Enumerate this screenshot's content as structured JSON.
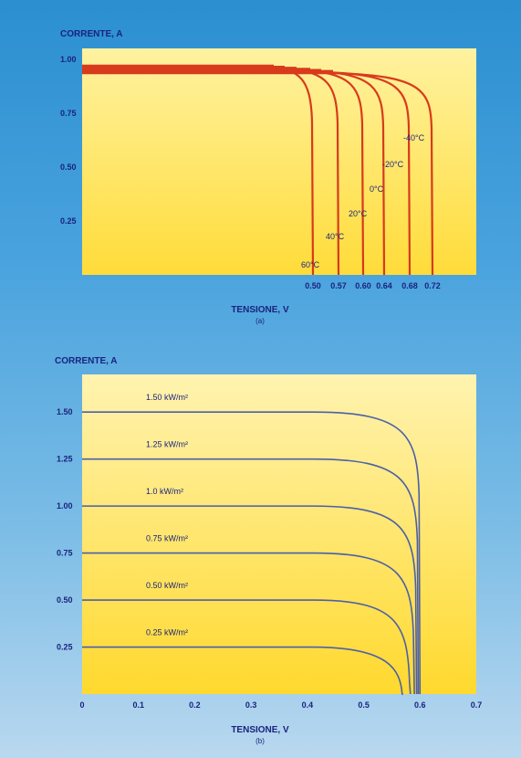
{
  "colors": {
    "background": "#3a98d8",
    "panel_yellow": "#ffe24a",
    "panel_top_yellow": "#fff4a8",
    "temp_curve": "#d83a1c",
    "irr_curve": "#4b5fa8",
    "text": "#1a237e"
  },
  "chart_data": [
    {
      "type": "line",
      "title": "",
      "ylabel": "CORRENTE, A",
      "xlabel": "TENSIONE, V",
      "caption": "(a)",
      "ylim": [
        0,
        1.05
      ],
      "y_ticks": [
        "0.25",
        "0.50",
        "0.75",
        "1.00"
      ],
      "x_ticks": [
        "0.50",
        "0.57",
        "0.60",
        "0.64",
        "0.68",
        "0.72"
      ],
      "series": [
        {
          "name": "60°C",
          "isc": 0.96,
          "voc": 0.5
        },
        {
          "name": "40°C",
          "isc": 0.955,
          "voc": 0.57
        },
        {
          "name": "20°C",
          "isc": 0.95,
          "voc": 0.6
        },
        {
          "name": "0°C",
          "isc": 0.945,
          "voc": 0.64
        },
        {
          "name": "-20°C",
          "isc": 0.94,
          "voc": 0.68
        },
        {
          "name": "-40°C",
          "isc": 0.935,
          "voc": 0.72
        }
      ]
    },
    {
      "type": "line",
      "title": "",
      "ylabel": "CORRENTE, A",
      "xlabel": "TENSIONE, V",
      "caption": "(b)",
      "xlim": [
        0,
        0.7
      ],
      "ylim": [
        0,
        1.7
      ],
      "x_ticks": [
        "0",
        "0.1",
        "0.2",
        "0.3",
        "0.4",
        "0.5",
        "0.6",
        "0.7"
      ],
      "y_ticks": [
        "0.25",
        "0.50",
        "0.75",
        "1.00",
        "1.25",
        "1.50"
      ],
      "series": [
        {
          "name": "1.50 kW/m²",
          "isc": 1.5,
          "voc": 0.6
        },
        {
          "name": "1.25 kW/m²",
          "isc": 1.25,
          "voc": 0.597
        },
        {
          "name": "1.0 kW/m²",
          "isc": 1.0,
          "voc": 0.594
        },
        {
          "name": "0.75 kW/m²",
          "isc": 0.75,
          "voc": 0.59
        },
        {
          "name": "0.50 kW/m²",
          "isc": 0.5,
          "voc": 0.583
        },
        {
          "name": "0.25 kW/m²",
          "isc": 0.25,
          "voc": 0.57
        }
      ]
    }
  ]
}
